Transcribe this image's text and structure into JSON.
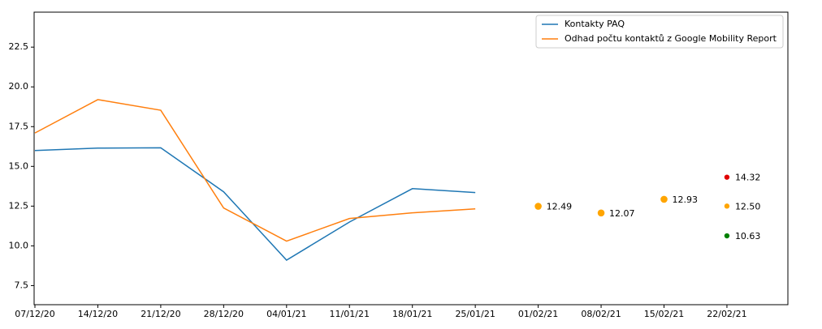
{
  "chart_data": {
    "type": "line",
    "categories": [
      "07/12/20",
      "14/12/20",
      "21/12/20",
      "28/12/20",
      "04/01/21",
      "11/01/21",
      "18/01/21",
      "25/01/21",
      "01/02/21",
      "08/02/21",
      "15/02/21",
      "22/02/21"
    ],
    "series": [
      {
        "name": "Kontakty PAQ",
        "color": "#1f77b4",
        "values": [
          16.0,
          16.15,
          16.17,
          13.4,
          9.1,
          11.5,
          13.6,
          13.35,
          null,
          null,
          null,
          null
        ]
      },
      {
        "name": "Odhad počtu kontaktů z Google Mobility Report",
        "color": "#ff7f0e",
        "values": [
          17.1,
          19.2,
          18.53,
          12.38,
          10.3,
          11.72,
          12.08,
          12.33,
          null,
          null,
          null,
          null
        ]
      }
    ],
    "markers": [
      {
        "color": "#ffa500",
        "values": [
          null,
          null,
          null,
          null,
          null,
          null,
          null,
          null,
          12.49,
          12.07,
          12.93,
          12.5
        ],
        "value_labels": [
          null,
          null,
          null,
          null,
          null,
          null,
          null,
          null,
          "12.49",
          "12.07",
          "12.93",
          "12.50"
        ]
      },
      {
        "color": "#e00000",
        "values": [
          null,
          null,
          null,
          null,
          null,
          null,
          null,
          null,
          null,
          null,
          null,
          14.32
        ],
        "value_labels": [
          null,
          null,
          null,
          null,
          null,
          null,
          null,
          null,
          null,
          null,
          null,
          "14.32"
        ]
      },
      {
        "color": "#008000",
        "values": [
          null,
          null,
          null,
          null,
          null,
          null,
          null,
          null,
          null,
          null,
          null,
          10.63
        ],
        "value_labels": [
          null,
          null,
          null,
          null,
          null,
          null,
          null,
          null,
          null,
          null,
          null,
          "10.63"
        ]
      }
    ],
    "ylim": [
      6.3,
      24.7
    ],
    "yticks": [
      7.5,
      {
        "value": 10,
        "label": "10.0"
      },
      12.5,
      {
        "value": 15,
        "label": "15.0"
      },
      17.5,
      {
        "value": 20,
        "label": "20.0"
      },
      22.5
    ],
    "legend": "upper right",
    "grid": false
  }
}
